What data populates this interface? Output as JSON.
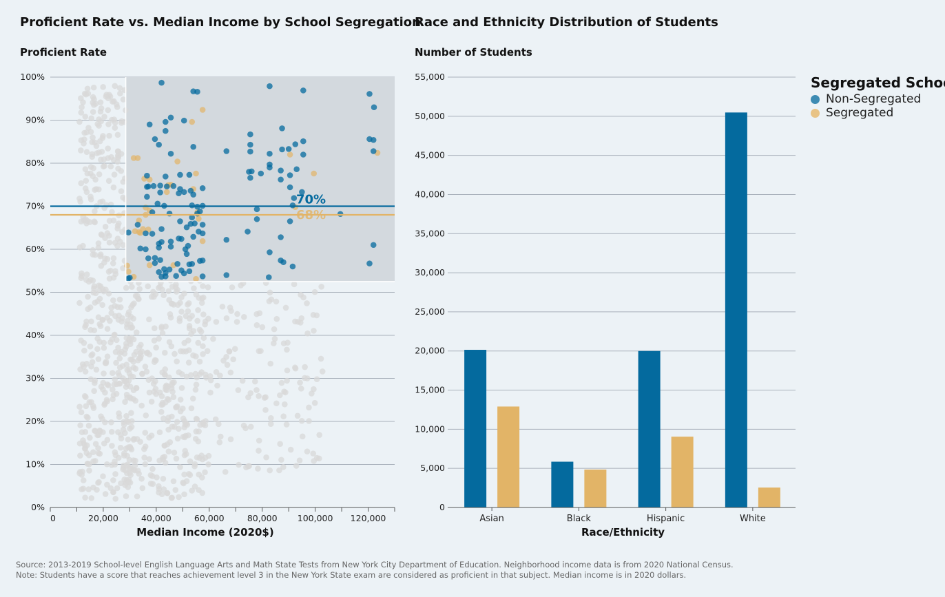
{
  "colors": {
    "non_segregated": "#046a9e",
    "segregated": "#e2b467",
    "background_point": "#d8d8d8",
    "highlight_region": "#d3d9de",
    "gridline": "#a8b0ba",
    "axis": "#555555"
  },
  "legend": {
    "title": "Segregated School",
    "items": [
      {
        "label": "Non-Segregated",
        "color": "#046a9e"
      },
      {
        "label": "Segregated",
        "color": "#e2b467"
      }
    ]
  },
  "footer": {
    "source": "Source: 2013-2019 School-level English Language Arts and Math State Tests from New York City Department of Education. Neighborhood income data is from 2020 National Census.",
    "note": "Note: Students have a score that reaches achievement level 3 in the New York State exam are considered as proficient in that subject. Median income is in 2020 dollars."
  },
  "chart_data": [
    {
      "type": "scatter",
      "title": "Proficient Rate vs. Median Income by School Segregation",
      "ylabel": "Proficient Rate",
      "xlabel": "Median Income (2020$)",
      "xlim": [
        0,
        130000
      ],
      "ylim": [
        0,
        1
      ],
      "x_ticks": [
        0,
        20000,
        40000,
        60000,
        80000,
        100000,
        120000
      ],
      "x_tick_labels": [
        "0",
        "20,000",
        "40,000",
        "60,000",
        "80,000",
        "100,000",
        "120,000"
      ],
      "y_ticks": [
        0,
        0.1,
        0.2,
        0.3,
        0.4,
        0.5,
        0.6,
        0.7,
        0.8,
        0.9,
        1.0
      ],
      "y_tick_labels": [
        "0%",
        "10%",
        "20%",
        "30%",
        "40%",
        "50%",
        "60%",
        "70%",
        "80%",
        "90%",
        "100%"
      ],
      "grid": "horizontal",
      "highlight_region": {
        "x": [
          28500,
          130000
        ],
        "y": [
          0.525,
          1.0
        ]
      },
      "reference_lines": [
        {
          "series": "Non-Segregated",
          "y": 0.7,
          "label": "70%"
        },
        {
          "series": "Segregated",
          "y": 0.68,
          "label": "68%"
        }
      ],
      "series": [
        {
          "name": "Non-Segregated",
          "points": [
            [
              42000,
              0.987
            ],
            [
              54000,
              0.967
            ],
            [
              55500,
              0.966
            ],
            [
              82800,
              0.979
            ],
            [
              95500,
              0.969
            ],
            [
              120500,
              0.961
            ],
            [
              122200,
              0.93
            ],
            [
              45500,
              0.906
            ],
            [
              37500,
              0.89
            ],
            [
              43500,
              0.896
            ],
            [
              50500,
              0.899
            ],
            [
              43500,
              0.875
            ],
            [
              39500,
              0.856
            ],
            [
              41000,
              0.843
            ],
            [
              45500,
              0.822
            ],
            [
              54000,
              0.838
            ],
            [
              66500,
              0.828
            ],
            [
              75500,
              0.867
            ],
            [
              75500,
              0.843
            ],
            [
              75500,
              0.827
            ],
            [
              82800,
              0.822
            ],
            [
              87500,
              0.881
            ],
            [
              87500,
              0.832
            ],
            [
              90000,
              0.833
            ],
            [
              92500,
              0.844
            ],
            [
              95500,
              0.851
            ],
            [
              95500,
              0.82
            ],
            [
              120500,
              0.856
            ],
            [
              122000,
              0.854
            ],
            [
              122000,
              0.828
            ],
            [
              75000,
              0.78
            ],
            [
              76000,
              0.781
            ],
            [
              79500,
              0.776
            ],
            [
              82800,
              0.797
            ],
            [
              82800,
              0.79
            ],
            [
              87000,
              0.783
            ],
            [
              90500,
              0.772
            ],
            [
              93000,
              0.786
            ],
            [
              75500,
              0.766
            ],
            [
              87000,
              0.762
            ],
            [
              90500,
              0.744
            ],
            [
              92000,
              0.719
            ],
            [
              95000,
              0.733
            ],
            [
              91500,
              0.702
            ],
            [
              36500,
              0.771
            ],
            [
              36500,
              0.745
            ],
            [
              37000,
              0.746
            ],
            [
              39000,
              0.747
            ],
            [
              41500,
              0.748
            ],
            [
              41500,
              0.732
            ],
            [
              43500,
              0.769
            ],
            [
              44000,
              0.746
            ],
            [
              46500,
              0.747
            ],
            [
              48500,
              0.73
            ],
            [
              49000,
              0.773
            ],
            [
              49000,
              0.74
            ],
            [
              50500,
              0.733
            ],
            [
              52500,
              0.773
            ],
            [
              53000,
              0.736
            ],
            [
              54000,
              0.727
            ],
            [
              53500,
              0.702
            ],
            [
              55500,
              0.699
            ],
            [
              56500,
              0.688
            ],
            [
              57500,
              0.742
            ],
            [
              57500,
              0.701
            ],
            [
              36500,
              0.722
            ],
            [
              38500,
              0.686
            ],
            [
              40500,
              0.706
            ],
            [
              43000,
              0.701
            ],
            [
              45000,
              0.683
            ],
            [
              49000,
              0.665
            ],
            [
              53500,
              0.674
            ],
            [
              54500,
              0.66
            ],
            [
              55500,
              0.683
            ],
            [
              57500,
              0.657
            ],
            [
              33000,
              0.657
            ],
            [
              29500,
              0.639
            ],
            [
              36000,
              0.637
            ],
            [
              38500,
              0.636
            ],
            [
              42000,
              0.647
            ],
            [
              42000,
              0.617
            ],
            [
              45500,
              0.618
            ],
            [
              45500,
              0.606
            ],
            [
              48500,
              0.625
            ],
            [
              49500,
              0.624
            ],
            [
              51500,
              0.651
            ],
            [
              53000,
              0.659
            ],
            [
              52000,
              0.608
            ],
            [
              54000,
              0.629
            ],
            [
              56000,
              0.641
            ],
            [
              57500,
              0.637
            ],
            [
              34000,
              0.602
            ],
            [
              36000,
              0.6
            ],
            [
              37000,
              0.579
            ],
            [
              39500,
              0.58
            ],
            [
              39500,
              0.568
            ],
            [
              41000,
              0.613
            ],
            [
              41000,
              0.604
            ],
            [
              41500,
              0.575
            ],
            [
              43000,
              0.554
            ],
            [
              45000,
              0.553
            ],
            [
              48000,
              0.566
            ],
            [
              49500,
              0.551
            ],
            [
              50500,
              0.544
            ],
            [
              51500,
              0.589
            ],
            [
              51000,
              0.6
            ],
            [
              52500,
              0.565
            ],
            [
              52500,
              0.549
            ],
            [
              53500,
              0.566
            ],
            [
              56500,
              0.573
            ],
            [
              57500,
              0.574
            ],
            [
              41000,
              0.547
            ],
            [
              42000,
              0.536
            ],
            [
              43500,
              0.545
            ],
            [
              43500,
              0.537
            ],
            [
              47500,
              0.538
            ],
            [
              57500,
              0.537
            ],
            [
              29500,
              0.532
            ],
            [
              30000,
              0.534
            ],
            [
              66500,
              0.622
            ],
            [
              66500,
              0.54
            ],
            [
              74500,
              0.641
            ],
            [
              78000,
              0.693
            ],
            [
              78000,
              0.67
            ],
            [
              82800,
              0.593
            ],
            [
              82500,
              0.535
            ],
            [
              87000,
              0.628
            ],
            [
              87000,
              0.574
            ],
            [
              88000,
              0.57
            ],
            [
              90500,
              0.665
            ],
            [
              91500,
              0.56
            ],
            [
              109500,
              0.682
            ],
            [
              120500,
              0.567
            ],
            [
              122000,
              0.61
            ]
          ]
        },
        {
          "name": "Segregated",
          "points": [
            [
              57500,
              0.924
            ],
            [
              53500,
              0.896
            ],
            [
              31500,
              0.812
            ],
            [
              33000,
              0.812
            ],
            [
              35500,
              0.764
            ],
            [
              37500,
              0.762
            ],
            [
              44500,
              0.749
            ],
            [
              45500,
              0.75
            ],
            [
              55000,
              0.776
            ],
            [
              54000,
              0.74
            ],
            [
              44000,
              0.733
            ],
            [
              36000,
              0.697
            ],
            [
              36000,
              0.68
            ],
            [
              37500,
              0.69
            ],
            [
              33500,
              0.667
            ],
            [
              35000,
              0.647
            ],
            [
              37000,
              0.646
            ],
            [
              55500,
              0.686
            ],
            [
              56000,
              0.671
            ],
            [
              48000,
              0.804
            ],
            [
              32000,
              0.642
            ],
            [
              33500,
              0.64
            ],
            [
              34000,
              0.638
            ],
            [
              57500,
              0.619
            ],
            [
              29000,
              0.562
            ],
            [
              29500,
              0.548
            ],
            [
              31500,
              0.536
            ],
            [
              37500,
              0.563
            ],
            [
              46500,
              0.563
            ],
            [
              55000,
              0.531
            ],
            [
              90500,
              0.82
            ],
            [
              92500,
              0.698
            ],
            [
              99500,
              0.776
            ],
            [
              123500,
              0.824
            ]
          ]
        }
      ]
    },
    {
      "type": "bar",
      "title": "Race and Ethnicity Distribution of Students",
      "ylabel": "Number of Students",
      "xlabel": "Race/Ethnicity",
      "ylim": [
        0,
        55000
      ],
      "y_ticks": [
        0,
        5000,
        10000,
        15000,
        20000,
        25000,
        30000,
        35000,
        40000,
        45000,
        50000,
        55000
      ],
      "y_tick_labels": [
        "0",
        "5,000",
        "10,000",
        "15,000",
        "20,000",
        "25,000",
        "30,000",
        "35,000",
        "40,000",
        "45,000",
        "50,000",
        "55,000"
      ],
      "grid": "horizontal",
      "categories": [
        "Asian",
        "Black",
        "Hispanic",
        "White"
      ],
      "series": [
        {
          "name": "Non-Segregated",
          "values": [
            20150,
            5850,
            20000,
            50480
          ]
        },
        {
          "name": "Segregated",
          "values": [
            12900,
            4850,
            9050,
            2550
          ]
        }
      ]
    }
  ]
}
